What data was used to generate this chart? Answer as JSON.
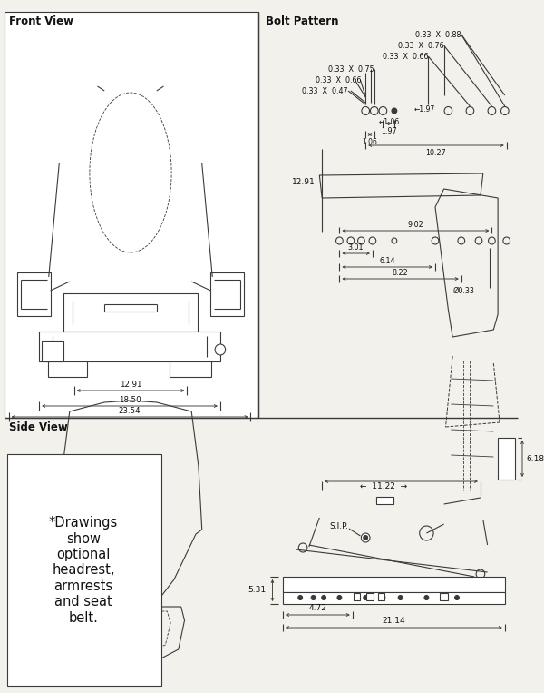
{
  "bg": "#f2f1eb",
  "lc": "#3a3a3a",
  "tc": "#111111",
  "white": "#ffffff",
  "title_front": "Front View",
  "title_bolt": "Bolt Pattern",
  "title_side": "Side View",
  "note": "*Drawings\nshow\noptional\nheadrest,\narmrests\nand seat\nbelt.",
  "fw1": "12.91",
  "fw2": "18.50",
  "fw3": "23.54",
  "bolt_labels": [
    "0.33  X  0.88",
    "0.33  X  0.76",
    "0.33  X  0.66",
    "0.33  X  0.75",
    "0.33  X  0.66",
    "0.33  X  0.47"
  ],
  "d197": "1.97",
  "d106": "1.06",
  "d1027": "10.27",
  "d1291": "12.91",
  "d902": "9.02",
  "d301": "3.01",
  "d614": "6.14",
  "d822": "8.22",
  "d033": "Ø0.33",
  "d1122": "11.22",
  "d618": "6.18",
  "d531": "5.31",
  "d472": "4.72",
  "d2114": "21.14",
  "sip": "S.I.P."
}
